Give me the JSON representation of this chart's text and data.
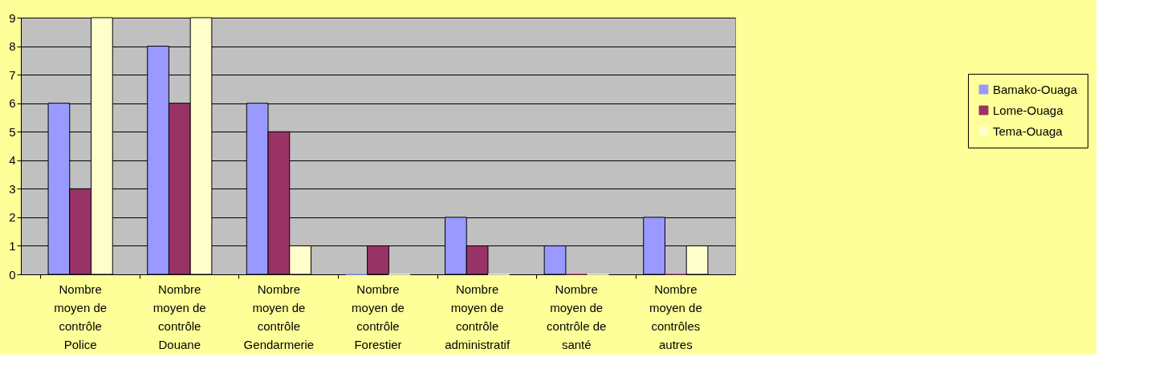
{
  "chart_data": {
    "type": "bar",
    "categories": [
      "Nombre\nmoyen de\ncontrôle\nPolice",
      "Nombre\nmoyen de\ncontrôle\nDouane",
      "Nombre\nmoyen de\ncontrôle\nGendarmerie",
      "Nombre\nmoyen de\ncontrôle\nForestier",
      "Nombre\nmoyen de\ncontrôle\nadministratif",
      "Nombre\nmoyen de\ncontrôle de\nsanté",
      "Nombre\nmoyen de\ncontrôles\nautres"
    ],
    "series": [
      {
        "name": "Bamako-Ouaga",
        "color": "#9999ff",
        "values": [
          6,
          8,
          6,
          0,
          2,
          1,
          2
        ]
      },
      {
        "name": "Lome-Ouaga",
        "color": "#993366",
        "values": [
          3,
          6,
          5,
          1,
          1,
          0,
          0
        ]
      },
      {
        "name": "Tema-Ouaga",
        "color": "#ffffcc",
        "values": [
          9,
          9,
          1,
          0,
          0,
          0,
          1
        ]
      }
    ],
    "ylim": [
      0,
      9
    ],
    "yticks": [
      0,
      1,
      2,
      3,
      4,
      5,
      6,
      7,
      8,
      9
    ],
    "grid": "y",
    "legend": "right"
  }
}
